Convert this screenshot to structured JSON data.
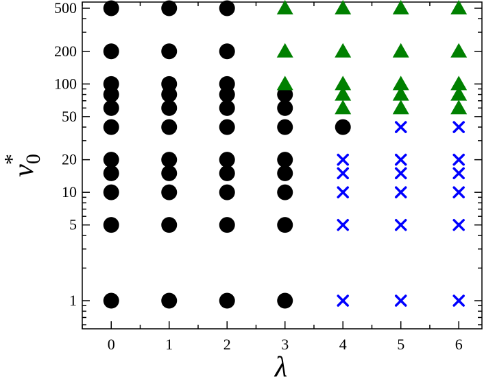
{
  "chart_data": {
    "type": "scatter",
    "title": "",
    "xlabel": "λ",
    "ylabel": "v",
    "ylabel_superscript": "*",
    "ylabel_subscript": "0",
    "x_scale": "linear",
    "y_scale": "log",
    "xlim": [
      -0.5,
      6.4
    ],
    "ylim": [
      0.55,
      570
    ],
    "x_ticks": [
      0,
      1,
      2,
      3,
      4,
      5,
      6
    ],
    "x_tick_labels": [
      "0",
      "1",
      "2",
      "3",
      "4",
      "5",
      "6"
    ],
    "y_ticks": [
      1,
      5,
      10,
      20,
      50,
      100,
      200,
      500
    ],
    "y_tick_labels": [
      "1",
      "5",
      "10",
      "20",
      "50",
      "100",
      "200",
      "500"
    ],
    "y_minor_ticks": [
      0.6,
      0.7,
      0.8,
      0.9,
      2,
      3,
      4,
      6,
      7,
      8,
      9,
      30,
      40,
      60,
      70,
      80,
      90,
      300,
      400
    ],
    "grid": false,
    "legend": "none",
    "series": [
      {
        "marker": "circle",
        "color": "#000000",
        "points": [
          [
            0,
            1
          ],
          [
            0,
            5
          ],
          [
            0,
            10
          ],
          [
            0,
            15
          ],
          [
            0,
            20
          ],
          [
            0,
            40
          ],
          [
            0,
            60
          ],
          [
            0,
            80
          ],
          [
            0,
            100
          ],
          [
            0,
            200
          ],
          [
            0,
            500
          ],
          [
            1,
            1
          ],
          [
            1,
            5
          ],
          [
            1,
            10
          ],
          [
            1,
            15
          ],
          [
            1,
            20
          ],
          [
            1,
            40
          ],
          [
            1,
            60
          ],
          [
            1,
            80
          ],
          [
            1,
            100
          ],
          [
            1,
            200
          ],
          [
            1,
            500
          ],
          [
            2,
            1
          ],
          [
            2,
            5
          ],
          [
            2,
            10
          ],
          [
            2,
            15
          ],
          [
            2,
            20
          ],
          [
            2,
            40
          ],
          [
            2,
            60
          ],
          [
            2,
            80
          ],
          [
            2,
            100
          ],
          [
            2,
            200
          ],
          [
            2,
            500
          ],
          [
            3,
            1
          ],
          [
            3,
            5
          ],
          [
            3,
            10
          ],
          [
            3,
            15
          ],
          [
            3,
            20
          ],
          [
            3,
            40
          ],
          [
            3,
            60
          ],
          [
            3,
            80
          ],
          [
            4,
            40
          ]
        ]
      },
      {
        "marker": "triangle",
        "color": "#008000",
        "points": [
          [
            3,
            100
          ],
          [
            3,
            200
          ],
          [
            3,
            500
          ],
          [
            4,
            60
          ],
          [
            4,
            80
          ],
          [
            4,
            100
          ],
          [
            4,
            200
          ],
          [
            4,
            500
          ],
          [
            5,
            60
          ],
          [
            5,
            80
          ],
          [
            5,
            100
          ],
          [
            5,
            200
          ],
          [
            5,
            500
          ],
          [
            6,
            60
          ],
          [
            6,
            80
          ],
          [
            6,
            100
          ],
          [
            6,
            200
          ],
          [
            6,
            500
          ]
        ]
      },
      {
        "marker": "cross",
        "color": "#0000ff",
        "points": [
          [
            4,
            1
          ],
          [
            4,
            5
          ],
          [
            4,
            10
          ],
          [
            4,
            15
          ],
          [
            4,
            20
          ],
          [
            5,
            1
          ],
          [
            5,
            5
          ],
          [
            5,
            10
          ],
          [
            5,
            15
          ],
          [
            5,
            20
          ],
          [
            5,
            40
          ],
          [
            6,
            1
          ],
          [
            6,
            5
          ],
          [
            6,
            10
          ],
          [
            6,
            15
          ],
          [
            6,
            20
          ],
          [
            6,
            40
          ]
        ]
      }
    ]
  }
}
